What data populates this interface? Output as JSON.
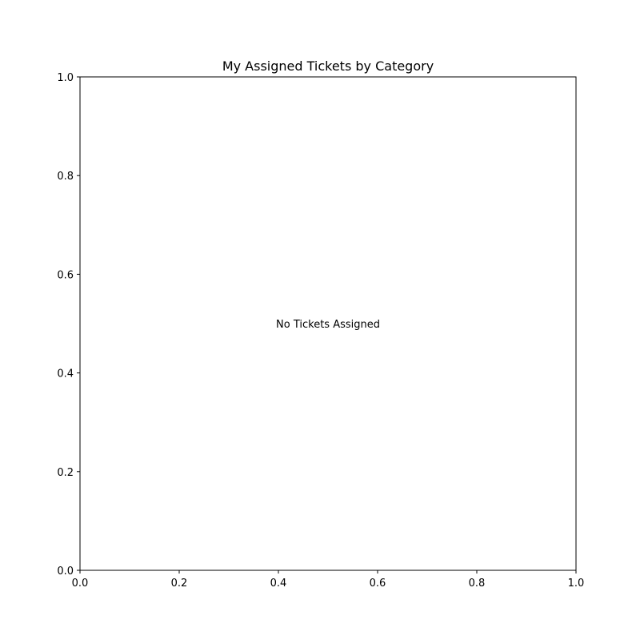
{
  "chart_data": {
    "type": "scatter",
    "title": "My Assigned Tickets by Category",
    "xlabel": "",
    "ylabel": "",
    "xlim": [
      0.0,
      1.0
    ],
    "ylim": [
      0.0,
      1.0
    ],
    "x_ticks": [
      "0.0",
      "0.2",
      "0.4",
      "0.6",
      "0.8",
      "1.0"
    ],
    "y_ticks": [
      "0.0",
      "0.2",
      "0.4",
      "0.6",
      "0.8",
      "1.0"
    ],
    "series": [],
    "annotations": [
      {
        "text": "No Tickets Assigned",
        "x": 0.5,
        "y": 0.5
      }
    ],
    "grid": false,
    "legend": "none"
  },
  "colors": {
    "axis": "#000000",
    "background": "#ffffff",
    "text": "#000000"
  }
}
